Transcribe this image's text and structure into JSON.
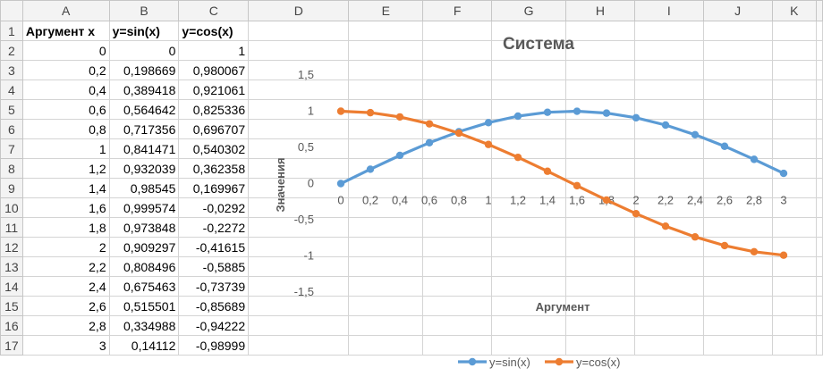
{
  "columns": [
    "A",
    "B",
    "C",
    "D",
    "E",
    "F",
    "G",
    "H",
    "I",
    "J",
    "K"
  ],
  "rows": [
    [
      "Аргумент x",
      "y=sin(x)",
      "y=cos(x)"
    ],
    [
      "0",
      "0",
      "1"
    ],
    [
      "0,2",
      "0,198669",
      "0,980067"
    ],
    [
      "0,4",
      "0,389418",
      "0,921061"
    ],
    [
      "0,6",
      "0,564642",
      "0,825336"
    ],
    [
      "0,8",
      "0,717356",
      "0,696707"
    ],
    [
      "1",
      "0,841471",
      "0,540302"
    ],
    [
      "1,2",
      "0,932039",
      "0,362358"
    ],
    [
      "1,4",
      "0,98545",
      "0,169967"
    ],
    [
      "1,6",
      "0,999574",
      "-0,0292"
    ],
    [
      "1,8",
      "0,973848",
      "-0,2272"
    ],
    [
      "2",
      "0,909297",
      "-0,41615"
    ],
    [
      "2,2",
      "0,808496",
      "-0,5885"
    ],
    [
      "2,4",
      "0,675463",
      "-0,73739"
    ],
    [
      "2,6",
      "0,515501",
      "-0,85689"
    ],
    [
      "2,8",
      "0,334988",
      "-0,94222"
    ],
    [
      "3",
      "0,14112",
      "-0,98999"
    ]
  ],
  "chart_data": {
    "type": "line",
    "title": "Система",
    "xlabel": "Аргумент",
    "ylabel": "Значения",
    "categories": [
      "0",
      "0,2",
      "0,4",
      "0,6",
      "0,8",
      "1",
      "1,2",
      "1,4",
      "1,6",
      "1,8",
      "2",
      "2,2",
      "2,4",
      "2,6",
      "2,8",
      "3"
    ],
    "ylim": [
      -1.5,
      1.5
    ],
    "yticks": [
      -1.5,
      -1,
      -0.5,
      0,
      0.5,
      1,
      1.5
    ],
    "ytick_labels": [
      "-1,5",
      "-1",
      "-0,5",
      "0",
      "0,5",
      "1",
      "1,5"
    ],
    "grid": false,
    "legend_position": "bottom",
    "series": [
      {
        "name": "y=sin(x)",
        "color": "#5b9bd5",
        "values": [
          0,
          0.198669,
          0.389418,
          0.564642,
          0.717356,
          0.841471,
          0.932039,
          0.98545,
          0.999574,
          0.973848,
          0.909297,
          0.808496,
          0.675463,
          0.515501,
          0.334988,
          0.14112
        ]
      },
      {
        "name": "y=cos(x)",
        "color": "#ed7d31",
        "values": [
          1,
          0.980067,
          0.921061,
          0.825336,
          0.696707,
          0.540302,
          0.362358,
          0.169967,
          -0.0292,
          -0.2272,
          -0.41615,
          -0.5885,
          -0.73739,
          -0.85689,
          -0.94222,
          -0.98999
        ]
      }
    ]
  }
}
